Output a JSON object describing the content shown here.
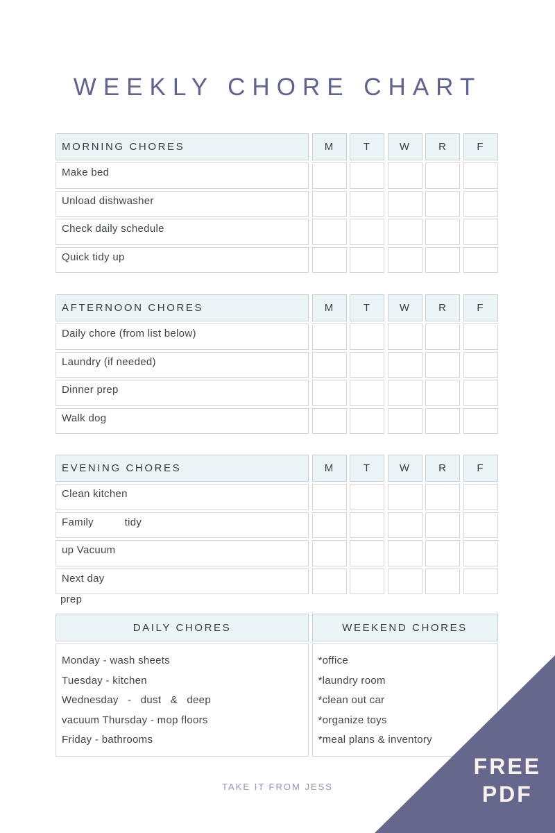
{
  "title": "WEEKLY CHORE CHART",
  "days": [
    "M",
    "T",
    "W",
    "R",
    "F"
  ],
  "tables": [
    {
      "title": "MORNING CHORES",
      "rows": [
        "Make bed",
        "Unload dishwasher",
        "Check daily schedule",
        "Quick tidy up"
      ]
    },
    {
      "title": "AFTERNOON CHORES",
      "rows": [
        "Daily chore (from list below)",
        "Laundry (if needed)",
        "Dinner prep",
        "Walk dog"
      ]
    },
    {
      "title": "EVENING CHORES",
      "rows": [
        "Clean kitchen",
        "Family          tidy",
        "up Vacuum",
        "Next day"
      ],
      "overflow": "prep"
    }
  ],
  "bottom": {
    "left": {
      "title": "DAILY CHORES",
      "items": [
        "Monday - wash sheets",
        "Tuesday - kitchen",
        "Wednesday   -   dust   &   deep",
        "vacuum Thursday - mop floors",
        "Friday - bathrooms"
      ]
    },
    "right": {
      "title": "WEEKEND CHORES",
      "items": [
        "*office",
        "*laundry room",
        "*clean out car",
        "*organize toys",
        "*meal plans & inventory"
      ]
    }
  },
  "footer": "TAKE IT FROM JESS",
  "badge": {
    "line1": "FREE",
    "line2": "PDF"
  },
  "colors": {
    "title_text": "#5e6390",
    "header_bg": "#ebf4f7",
    "header_border": "#c9ced2",
    "cell_border": "#d3d6d8",
    "body_text": "#3e444b",
    "footer_text": "#8e93be",
    "triangle": "#65688c",
    "badge_text": "#faf2e9"
  }
}
